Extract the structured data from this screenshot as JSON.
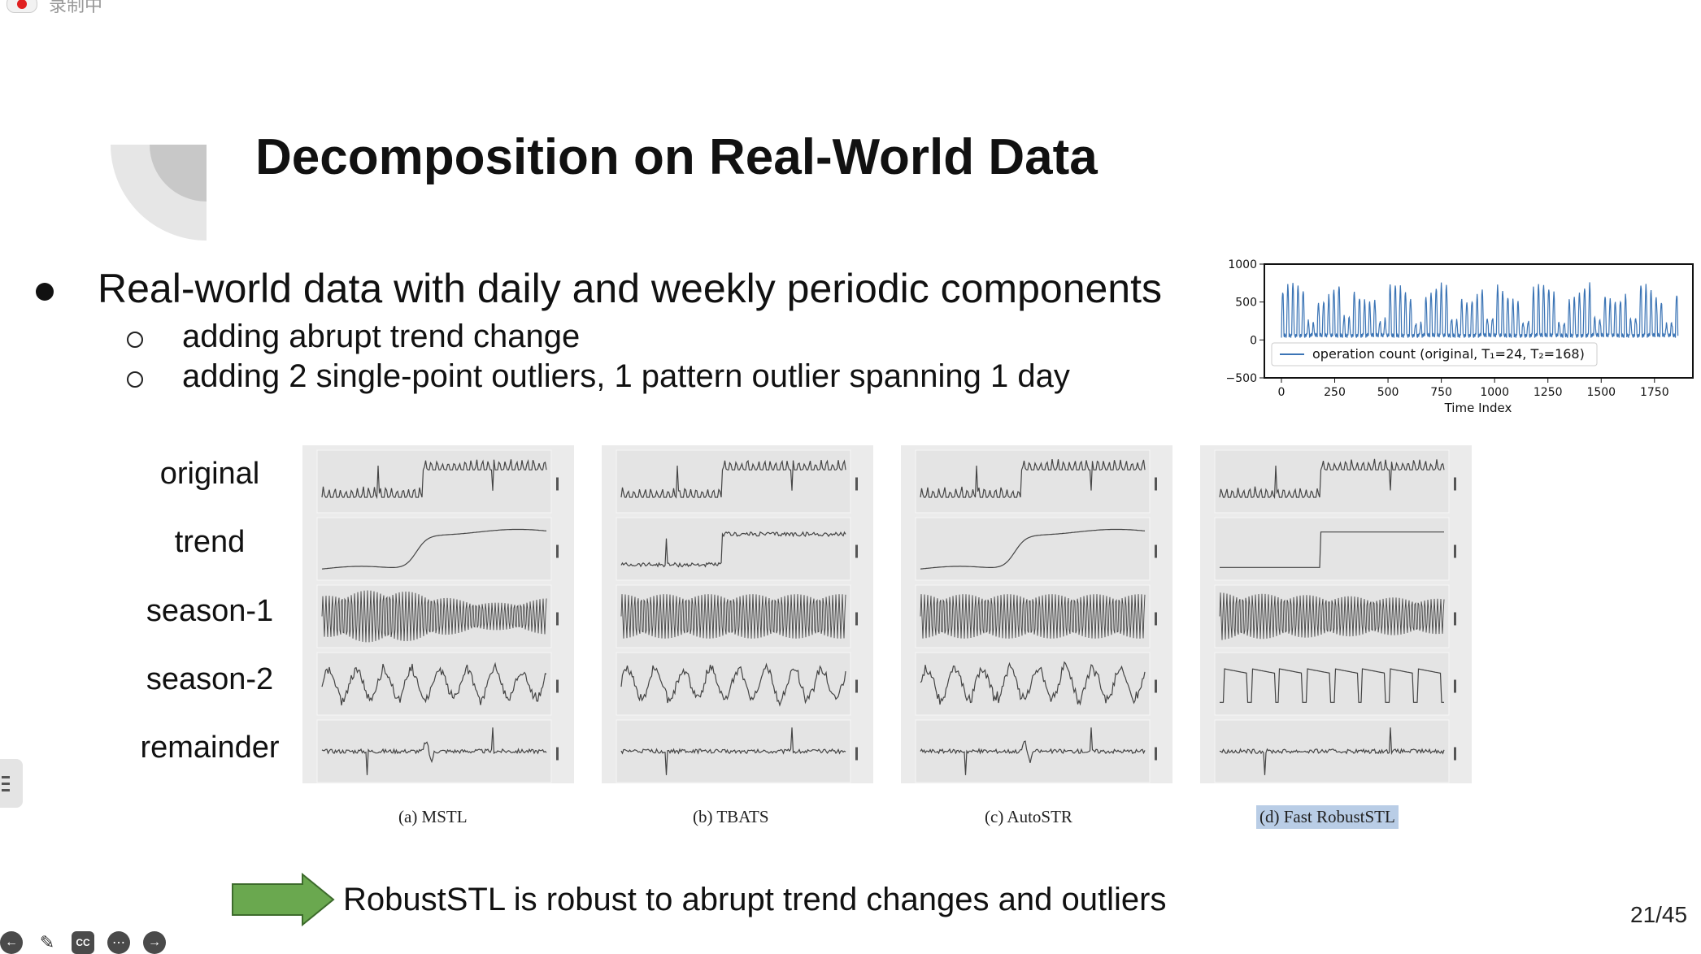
{
  "recording": {
    "status_text": "录制中"
  },
  "slide": {
    "title": "Decomposition on Real-World Data",
    "bullet_main": "Real-world data with daily and weekly periodic components",
    "sub_bullets": [
      "adding abrupt trend change",
      "adding 2 single-point outliers, 1 pattern outlier spanning 1 day"
    ],
    "row_labels": [
      "original",
      "trend",
      "season-1",
      "season-2",
      "remainder"
    ],
    "captions": [
      "(a) MSTL",
      "(b) TBATS",
      "(c) AutoSTR",
      "(d) Fast RobustSTL"
    ],
    "conclusion": "RobustSTL is robust to abrupt trend changes and outliers",
    "page_number": "21/45"
  },
  "chart_data": {
    "type": "line",
    "xlabel": "Time Index",
    "x_ticks": [
      "0",
      "250",
      "500",
      "750",
      "1000",
      "1250",
      "1500",
      "1750"
    ],
    "y_ticks": [
      "1000",
      "500",
      "0",
      "−500"
    ],
    "xlim": [
      -80,
      1930
    ],
    "ylim": [
      -500,
      1000
    ],
    "legend_label": "operation count (original, T₁=24, T₂=168)",
    "legend_position": "lower-center",
    "series_color": "#3b74b5"
  },
  "controls": {
    "icons": [
      "prev-icon",
      "pen-icon",
      "cc-icon",
      "more-icon",
      "next-icon"
    ],
    "cc_label": "CC"
  }
}
